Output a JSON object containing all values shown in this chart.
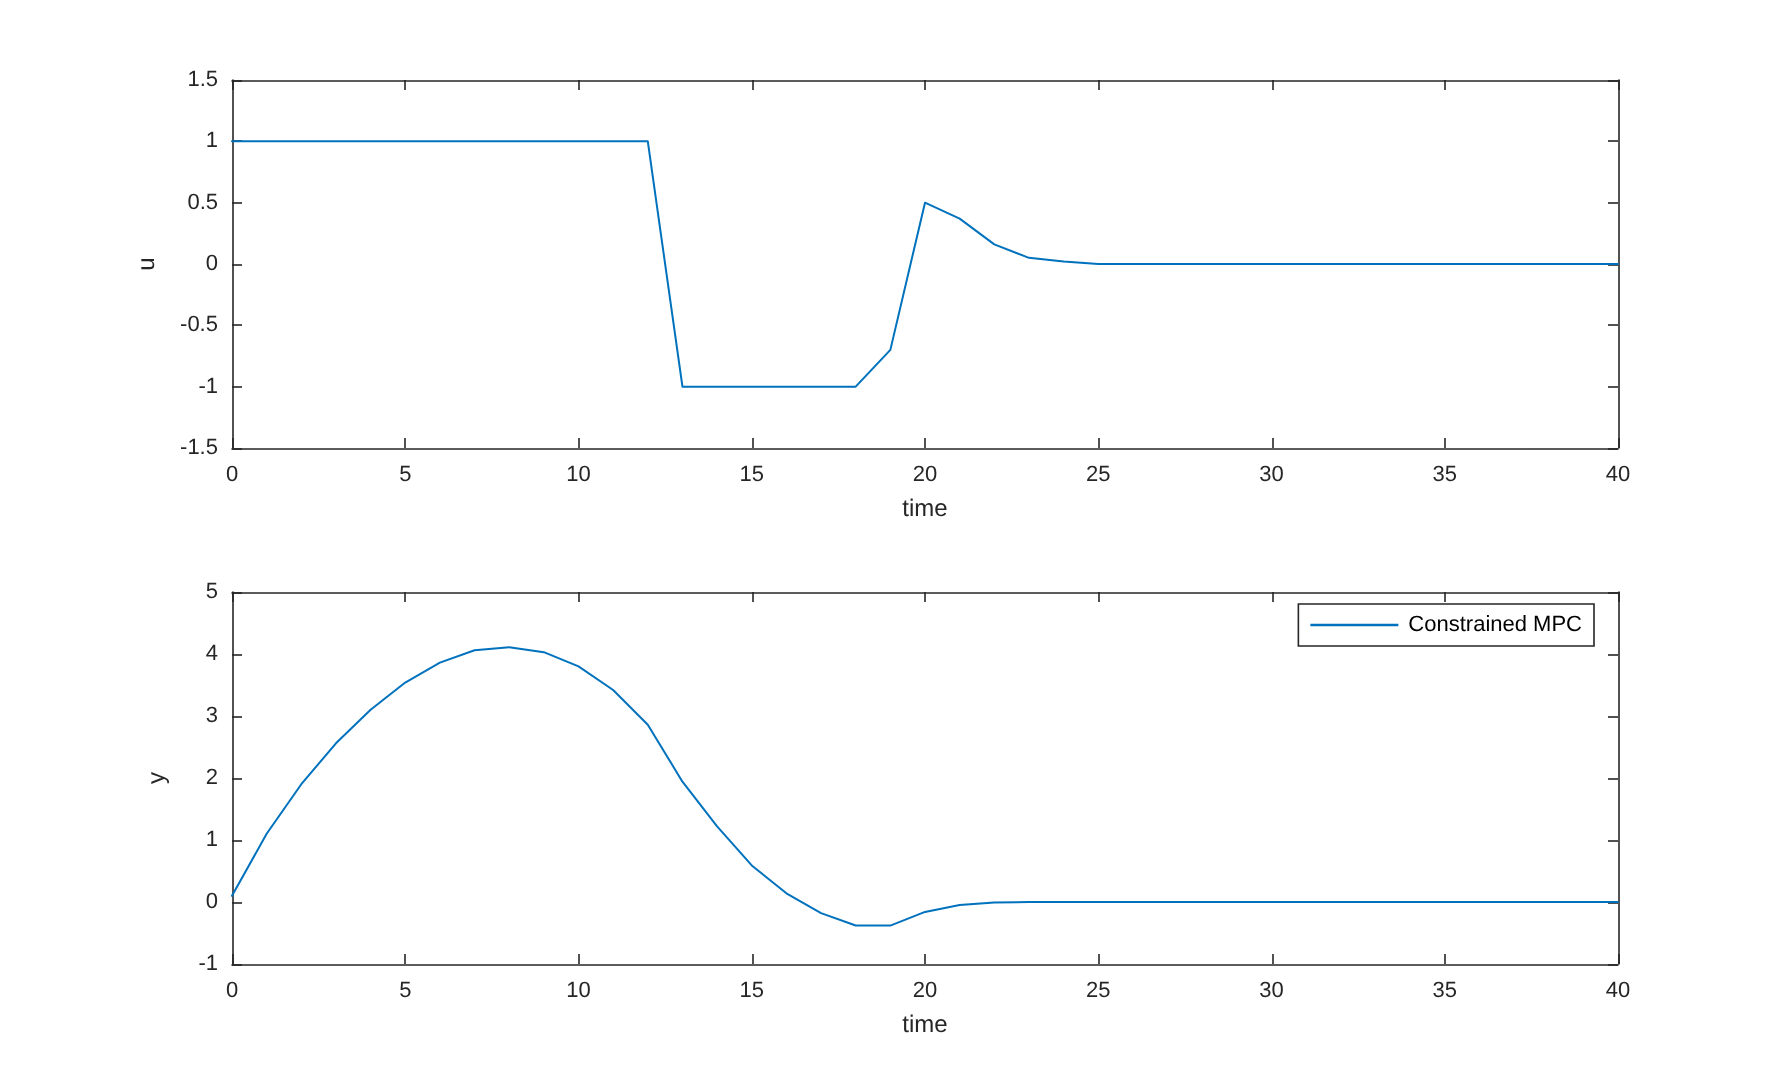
{
  "chart_data": [
    {
      "type": "line",
      "xlabel": "time",
      "ylabel": "u",
      "x": [
        0,
        1,
        2,
        3,
        4,
        5,
        6,
        7,
        8,
        9,
        10,
        11,
        12,
        13,
        14,
        15,
        16,
        17,
        18,
        19,
        20,
        21,
        22,
        23,
        24,
        25,
        26,
        27,
        28,
        29,
        30,
        31,
        32,
        33,
        34,
        35,
        36,
        37,
        38,
        39,
        40
      ],
      "series": [
        {
          "color": "#0072bd",
          "values": [
            1,
            1,
            1,
            1,
            1,
            1,
            1,
            1,
            1,
            1,
            1,
            1,
            1,
            -1,
            -1,
            -1,
            -1,
            -1,
            -1,
            -0.7,
            0.5,
            0.37,
            0.16,
            0.05,
            0.02,
            0,
            0,
            0,
            0,
            0,
            0,
            0,
            0,
            0,
            0,
            0,
            0,
            0,
            0,
            0,
            0
          ]
        }
      ],
      "xlim": [
        0,
        40
      ],
      "xticks": [
        0,
        5,
        10,
        15,
        20,
        25,
        30,
        35,
        40
      ],
      "ylim": [
        -1.5,
        1.5
      ],
      "yticks": [
        -1.5,
        -1,
        -0.5,
        0,
        0.5,
        1,
        1.5
      ],
      "marker": "none",
      "line_style": "solid"
    },
    {
      "type": "line",
      "xlabel": "time",
      "ylabel": "y",
      "x": [
        0,
        1,
        2,
        3,
        4,
        5,
        6,
        7,
        8,
        9,
        10,
        11,
        12,
        13,
        14,
        15,
        16,
        17,
        18,
        19,
        20,
        21,
        22,
        23,
        24,
        25,
        26,
        27,
        28,
        29,
        30,
        31,
        32,
        33,
        34,
        35,
        36,
        37,
        38,
        39,
        40
      ],
      "series": [
        {
          "name": "Constrained MPC",
          "color": "#0072bd",
          "values": [
            0.1,
            1.1,
            1.9,
            2.56,
            3.1,
            3.54,
            3.86,
            4.06,
            4.11,
            4.03,
            3.8,
            3.42,
            2.86,
            1.94,
            1.22,
            0.59,
            0.14,
            -0.18,
            -0.38,
            -0.38,
            -0.16,
            -0.05,
            -0.01,
            0,
            0,
            0,
            0,
            0,
            0,
            0,
            0,
            0,
            0,
            0,
            0,
            0,
            0,
            0,
            0,
            0,
            0
          ]
        }
      ],
      "xlim": [
        0,
        40
      ],
      "xticks": [
        0,
        5,
        10,
        15,
        20,
        25,
        30,
        35,
        40
      ],
      "ylim": [
        -1,
        5
      ],
      "yticks": [
        -1,
        0,
        1,
        2,
        3,
        4,
        5
      ],
      "legend": "top right",
      "marker": "none",
      "line_style": "solid"
    }
  ]
}
